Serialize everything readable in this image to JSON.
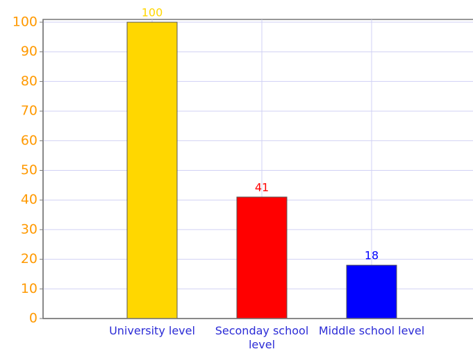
{
  "chart_data": {
    "type": "bar",
    "categories": [
      "University level",
      "Seconday school level",
      "Middle school level"
    ],
    "values": [
      100,
      41,
      18
    ],
    "colors": [
      "#ffd700",
      "#ff0000",
      "#0000ff"
    ],
    "ylim": [
      0,
      100
    ],
    "yticks": [
      0,
      10,
      20,
      30,
      40,
      50,
      60,
      70,
      80,
      90,
      100
    ],
    "grid": true
  }
}
